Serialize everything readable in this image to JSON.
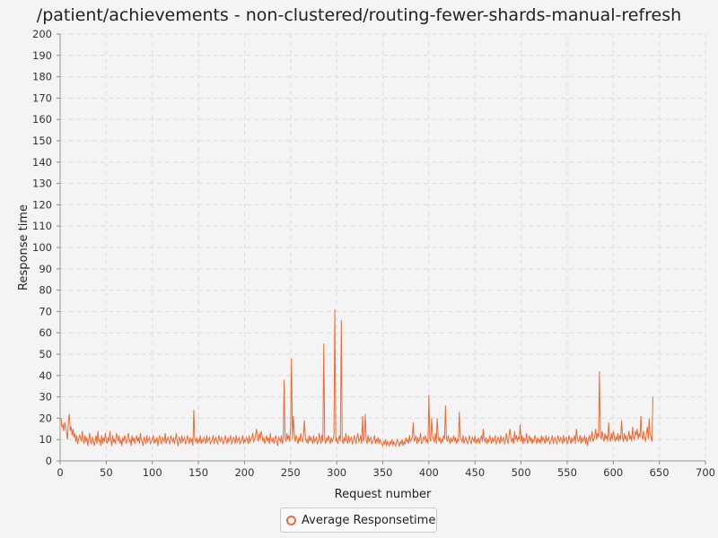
{
  "chart_data": {
    "type": "line",
    "title": "/patient/achievements - non-clustered/routing-fewer-shards-manual-refresh",
    "xlabel": "Request number",
    "ylabel": "Response time",
    "xlim": [
      0,
      700
    ],
    "ylim": [
      0,
      200
    ],
    "x_ticks": [
      0,
      50,
      100,
      150,
      200,
      250,
      300,
      350,
      400,
      450,
      500,
      550,
      600,
      650,
      700
    ],
    "y_ticks": [
      0,
      10,
      20,
      30,
      40,
      50,
      60,
      70,
      80,
      90,
      100,
      110,
      120,
      130,
      140,
      150,
      160,
      170,
      180,
      190,
      200
    ],
    "grid": true,
    "legend_position": "bottom-center",
    "series": [
      {
        "name": "Average Responsetime",
        "color": "#ee6a35",
        "x_start": 1,
        "values": [
          20,
          16,
          17,
          14,
          18,
          16,
          13,
          10,
          19,
          22,
          14,
          16,
          12,
          15,
          11,
          13,
          9,
          12,
          8,
          10,
          12,
          11,
          9,
          14,
          10,
          8,
          12,
          9,
          11,
          7,
          10,
          13,
          9,
          8,
          11,
          10,
          7,
          9,
          12,
          8,
          14,
          9,
          10,
          7,
          12,
          8,
          11,
          9,
          13,
          10,
          8,
          11,
          9,
          14,
          10,
          7,
          12,
          9,
          10,
          8,
          13,
          11,
          9,
          12,
          8,
          10,
          7,
          11,
          9,
          12,
          10,
          8,
          11,
          13,
          9,
          10,
          7,
          12,
          9,
          11,
          8,
          10,
          12,
          9,
          11,
          8,
          13,
          10,
          9,
          7,
          11,
          10,
          8,
          12,
          9,
          10,
          11,
          8,
          9,
          10,
          12,
          8,
          10,
          9,
          11,
          7,
          10,
          12,
          9,
          8,
          11,
          10,
          9,
          13,
          8,
          10,
          11,
          9,
          8,
          12,
          10,
          9,
          11,
          8,
          10,
          13,
          9,
          7,
          11,
          10,
          8,
          12,
          9,
          10,
          11,
          8,
          9,
          12,
          10,
          8,
          11,
          9,
          10,
          7,
          24,
          10,
          9,
          11,
          8,
          10,
          9,
          12,
          8,
          10,
          9,
          11,
          10,
          8,
          12,
          9,
          10,
          11,
          8,
          9,
          10,
          12,
          8,
          10,
          11,
          9,
          8,
          12,
          10,
          9,
          11,
          10,
          8,
          9,
          12,
          10,
          8,
          11,
          9,
          10,
          12,
          8,
          9,
          11,
          10,
          8,
          12,
          9,
          10,
          11,
          8,
          9,
          10,
          12,
          8,
          10,
          9,
          11,
          10,
          8,
          12,
          9,
          10,
          11,
          13,
          9,
          10,
          12,
          15,
          11,
          9,
          13,
          10,
          14,
          12,
          9,
          11,
          8,
          10,
          12,
          9,
          11,
          8,
          13,
          10,
          9,
          11,
          8,
          10,
          12,
          9,
          7,
          11,
          10,
          9,
          12,
          8,
          10,
          38,
          11,
          9,
          13,
          10,
          12,
          9,
          16,
          48,
          10,
          21,
          13,
          9,
          12,
          10,
          8,
          11,
          9,
          13,
          10,
          9,
          12,
          19,
          11,
          9,
          10,
          8,
          12,
          9,
          11,
          10,
          8,
          12,
          9,
          10,
          11,
          8,
          9,
          13,
          10,
          8,
          12,
          9,
          55,
          10,
          8,
          11,
          9,
          12,
          10,
          8,
          11,
          9,
          10,
          12,
          71,
          9,
          11,
          8,
          10,
          12,
          9,
          66,
          10,
          8,
          11,
          9,
          13,
          10,
          8,
          12,
          9,
          10,
          11,
          8,
          9,
          12,
          10,
          8,
          11,
          13,
          9,
          10,
          12,
          8,
          21,
          9,
          11,
          22,
          10,
          8,
          12,
          9,
          10,
          11,
          8,
          9,
          10,
          12,
          8,
          10,
          9,
          11,
          8,
          10,
          9,
          8,
          7,
          9,
          8,
          10,
          7,
          9,
          8,
          7,
          9,
          8,
          10,
          7,
          9,
          8,
          7,
          9,
          10,
          8,
          7,
          9,
          8,
          10,
          7,
          9,
          8,
          11,
          9,
          10,
          8,
          12,
          9,
          10,
          11,
          18,
          9,
          10,
          12,
          8,
          11,
          9,
          10,
          13,
          8,
          9,
          11,
          10,
          12,
          9,
          10,
          8,
          31,
          11,
          9,
          20,
          12,
          10,
          9,
          13,
          8,
          20,
          12,
          9,
          11,
          8,
          10,
          9,
          12,
          10,
          26,
          11,
          9,
          12,
          10,
          8,
          11,
          9,
          10,
          12,
          9,
          11,
          8,
          10,
          9,
          23,
          11,
          10,
          9,
          12,
          8,
          10,
          11,
          9,
          8,
          10,
          12,
          9,
          8,
          11,
          10,
          9,
          12,
          8,
          10,
          9,
          11,
          8,
          10,
          12,
          9,
          15,
          10,
          9,
          11,
          8,
          10,
          9,
          12,
          10,
          8,
          11,
          9,
          10,
          12,
          8,
          9,
          11,
          10,
          8,
          12,
          9,
          10,
          11,
          8,
          9,
          13,
          10,
          8,
          12,
          15,
          10,
          9,
          11,
          8,
          14,
          10,
          12,
          9,
          11,
          10,
          17,
          9,
          12,
          8,
          11,
          9,
          10,
          13,
          8,
          10,
          12,
          9,
          11,
          8,
          10,
          9,
          12,
          10,
          8,
          11,
          9,
          10,
          8,
          12,
          9,
          11,
          10,
          8,
          12,
          9,
          10,
          11,
          8,
          9,
          10,
          12,
          8,
          10,
          11,
          9,
          8,
          12,
          10,
          9,
          11,
          10,
          8,
          12,
          9,
          10,
          11,
          8,
          9,
          12,
          10,
          8,
          11,
          9,
          10,
          12,
          8,
          15,
          11,
          9,
          10,
          12,
          8,
          11,
          9,
          10,
          12,
          8,
          11,
          7,
          10,
          12,
          9,
          11,
          14,
          9,
          10,
          12,
          15,
          10,
          13,
          11,
          42,
          12,
          10,
          14,
          11,
          9,
          13,
          10,
          12,
          9,
          18,
          11,
          9,
          13,
          10,
          14,
          12,
          9,
          11,
          10,
          13,
          9,
          12,
          10,
          19,
          11,
          9,
          13,
          10,
          12,
          9,
          11,
          14,
          10,
          12,
          9,
          16,
          11,
          10,
          14,
          12,
          15,
          10,
          13,
          11,
          21,
          12,
          10,
          14,
          11,
          9,
          13,
          16,
          10,
          20,
          12,
          11,
          9,
          30
        ]
      }
    ]
  }
}
